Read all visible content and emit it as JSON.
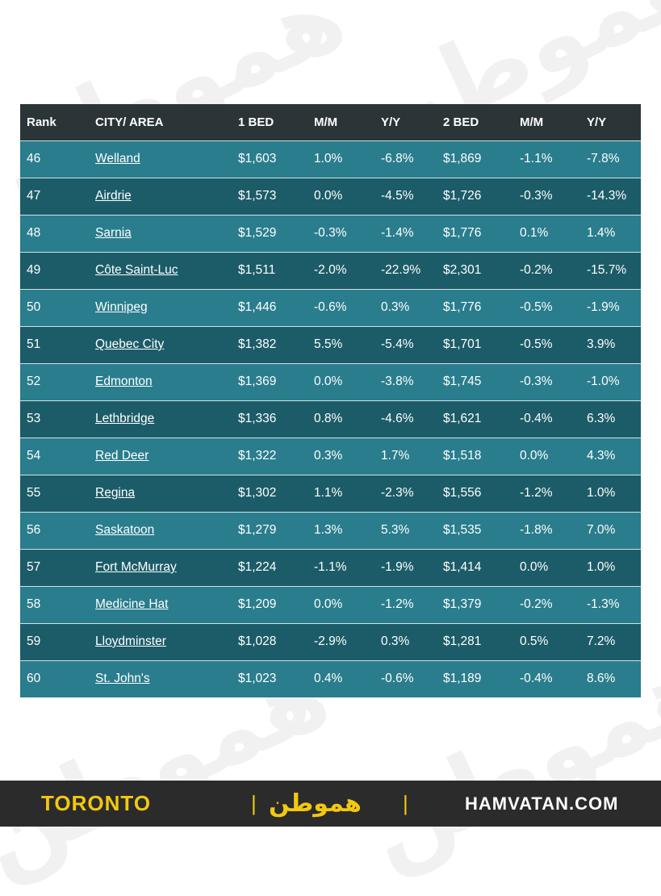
{
  "table": {
    "headers": [
      "Rank",
      "CITY/ AREA",
      "1 BED",
      "M/M",
      "Y/Y",
      "2 BED",
      "M/M",
      "Y/Y"
    ],
    "rows": [
      [
        "46",
        "Welland",
        "$1,603",
        "1.0%",
        "-6.8%",
        "$1,869",
        "-1.1%",
        "-7.8%"
      ],
      [
        "47",
        "Airdrie",
        "$1,573",
        "0.0%",
        "-4.5%",
        "$1,726",
        "-0.3%",
        "-14.3%"
      ],
      [
        "48",
        "Sarnia",
        "$1,529",
        "-0.3%",
        "-1.4%",
        "$1,776",
        "0.1%",
        "1.4%"
      ],
      [
        "49",
        "Côte Saint-Luc",
        "$1,511",
        "-2.0%",
        "-22.9%",
        "$2,301",
        "-0.2%",
        "-15.7%"
      ],
      [
        "50",
        "Winnipeg",
        "$1,446",
        "-0.6%",
        "0.3%",
        "$1,776",
        "-0.5%",
        "-1.9%"
      ],
      [
        "51",
        "Quebec City",
        "$1,382",
        "5.5%",
        "-5.4%",
        "$1,701",
        "-0.5%",
        "3.9%"
      ],
      [
        "52",
        "Edmonton",
        "$1,369",
        "0.0%",
        "-3.8%",
        "$1,745",
        "-0.3%",
        "-1.0%"
      ],
      [
        "53",
        "Lethbridge",
        "$1,336",
        "0.8%",
        "-4.6%",
        "$1,621",
        "-0.4%",
        "6.3%"
      ],
      [
        "54",
        "Red Deer",
        "$1,322",
        "0.3%",
        "1.7%",
        "$1,518",
        "0.0%",
        "4.3%"
      ],
      [
        "55",
        "Regina",
        "$1,302",
        "1.1%",
        "-2.3%",
        "$1,556",
        "-1.2%",
        "1.0%"
      ],
      [
        "56",
        "Saskatoon",
        "$1,279",
        "1.3%",
        "5.3%",
        "$1,535",
        "-1.8%",
        "7.0%"
      ],
      [
        "57",
        "Fort McMurray",
        "$1,224",
        "-1.1%",
        "-1.9%",
        "$1,414",
        "0.0%",
        "1.0%"
      ],
      [
        "58",
        "Medicine Hat",
        "$1,209",
        "0.0%",
        "-1.2%",
        "$1,379",
        "-0.2%",
        "-1.3%"
      ],
      [
        "59",
        "Lloydminster",
        "$1,028",
        "-2.9%",
        "0.3%",
        "$1,281",
        "0.5%",
        "7.2%"
      ],
      [
        "60",
        "St. John's",
        "$1,023",
        "0.4%",
        "-0.6%",
        "$1,189",
        "-0.4%",
        "8.6%"
      ]
    ]
  },
  "footer": {
    "left": "TORONTO",
    "separator": "|",
    "logo": "هموطن",
    "right": "HAMVATAN.COM"
  },
  "colors": {
    "header_bg": "#2b3538",
    "row_light": "#2a7d8c",
    "row_dark": "#1c5c68",
    "footer_bg": "#2b2b2b",
    "accent_yellow": "#f2c811"
  }
}
